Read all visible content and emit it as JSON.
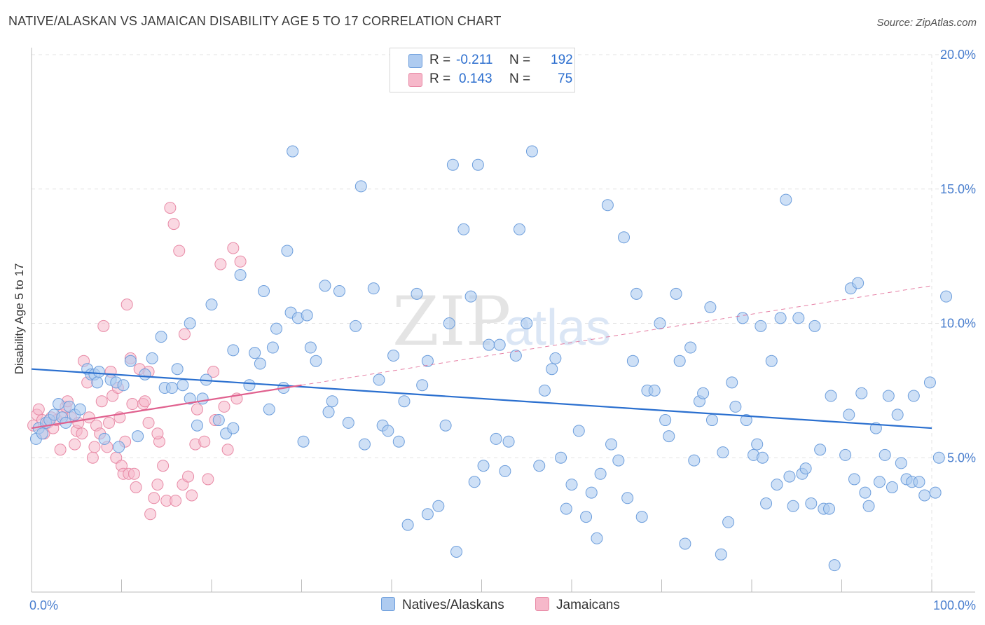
{
  "title": "NATIVE/ALASKAN VS JAMAICAN DISABILITY AGE 5 TO 17 CORRELATION CHART",
  "source": "Source: ZipAtlas.com",
  "watermark": {
    "zip": "ZIP",
    "atlas": "atlas"
  },
  "legend": {
    "rows": [
      {
        "r_label": "R =",
        "r_value": "-0.211",
        "n_label": "N =",
        "n_value": "192",
        "color": "#aecbf0"
      },
      {
        "r_label": "R =",
        "r_value": "0.143",
        "n_label": "N =",
        "n_value": "75",
        "color": "#f6b8ca"
      }
    ]
  },
  "bottom_legend": [
    {
      "label": "Natives/Alaskans",
      "color": "#aecbf0"
    },
    {
      "label": "Jamaicans",
      "color": "#f6b8ca"
    }
  ],
  "chart_data": {
    "type": "scatter",
    "title": "NATIVE/ALASKAN VS JAMAICAN DISABILITY AGE 5 TO 17 CORRELATION CHART",
    "xlabel": "",
    "ylabel": "Disability Age 5 to 17",
    "xlim": [
      0,
      100
    ],
    "ylim": [
      0,
      20
    ],
    "x_tick_labels": [
      "0.0%",
      "100.0%"
    ],
    "y_tick_labels": [
      "5.0%",
      "10.0%",
      "15.0%",
      "20.0%"
    ],
    "y_ticks": [
      5,
      10,
      15,
      20
    ],
    "grid": true,
    "colors": {
      "blue_fill": "#aecbf0",
      "blue_stroke": "#6d9edc",
      "blue_line": "#2a6fcf",
      "pink_fill": "#f6b8ca",
      "pink_stroke": "#e88aa6",
      "pink_line": "#e0608e"
    },
    "series": [
      {
        "name": "Natives/Alaskans",
        "color": "#aecbf0",
        "trend": {
          "x": [
            0,
            100
          ],
          "y": [
            8.3,
            6.1
          ]
        },
        "points": [
          [
            0.5,
            5.7
          ],
          [
            0.8,
            6.1
          ],
          [
            1.2,
            5.9
          ],
          [
            1.6,
            6.3
          ],
          [
            2.0,
            6.4
          ],
          [
            2.5,
            6.6
          ],
          [
            3.0,
            7.0
          ],
          [
            3.4,
            6.5
          ],
          [
            3.8,
            6.3
          ],
          [
            4.2,
            6.9
          ],
          [
            4.8,
            6.6
          ],
          [
            5.4,
            6.8
          ],
          [
            6.2,
            8.3
          ],
          [
            6.6,
            8.1
          ],
          [
            7.0,
            8.1
          ],
          [
            7.3,
            7.8
          ],
          [
            7.5,
            8.2
          ],
          [
            8.1,
            5.7
          ],
          [
            8.8,
            7.9
          ],
          [
            9.4,
            7.8
          ],
          [
            9.7,
            5.4
          ],
          [
            10.2,
            7.7
          ],
          [
            11.0,
            8.6
          ],
          [
            11.8,
            5.8
          ],
          [
            12.6,
            8.1
          ],
          [
            13.4,
            8.7
          ],
          [
            14.4,
            9.5
          ],
          [
            14.8,
            7.6
          ],
          [
            15.6,
            7.6
          ],
          [
            16.2,
            8.3
          ],
          [
            16.8,
            7.7
          ],
          [
            17.6,
            7.2
          ],
          [
            17.6,
            10.0
          ],
          [
            18.4,
            6.2
          ],
          [
            19.0,
            7.2
          ],
          [
            19.4,
            7.9
          ],
          [
            20.0,
            10.7
          ],
          [
            20.8,
            6.4
          ],
          [
            21.6,
            5.9
          ],
          [
            22.4,
            6.1
          ],
          [
            22.4,
            9.0
          ],
          [
            23.2,
            11.8
          ],
          [
            24.2,
            7.7
          ],
          [
            24.8,
            8.9
          ],
          [
            25.4,
            8.5
          ],
          [
            25.8,
            11.2
          ],
          [
            26.4,
            6.8
          ],
          [
            26.8,
            9.1
          ],
          [
            27.2,
            9.8
          ],
          [
            28.0,
            7.6
          ],
          [
            28.4,
            12.7
          ],
          [
            28.8,
            10.4
          ],
          [
            29.0,
            16.4
          ],
          [
            29.6,
            10.2
          ],
          [
            30.2,
            5.6
          ],
          [
            30.6,
            10.3
          ],
          [
            31.0,
            9.1
          ],
          [
            31.6,
            8.6
          ],
          [
            32.6,
            11.4
          ],
          [
            33.0,
            6.7
          ],
          [
            33.4,
            7.1
          ],
          [
            34.2,
            11.2
          ],
          [
            35.2,
            6.3
          ],
          [
            36.0,
            9.9
          ],
          [
            36.6,
            15.1
          ],
          [
            37.0,
            5.5
          ],
          [
            38.0,
            11.3
          ],
          [
            38.6,
            7.9
          ],
          [
            39.0,
            6.2
          ],
          [
            39.6,
            6.0
          ],
          [
            40.2,
            8.8
          ],
          [
            40.8,
            5.6
          ],
          [
            41.4,
            7.1
          ],
          [
            41.8,
            2.5
          ],
          [
            42.8,
            11.1
          ],
          [
            43.4,
            7.7
          ],
          [
            44.0,
            8.6
          ],
          [
            44.0,
            2.9
          ],
          [
            45.2,
            3.2
          ],
          [
            46.0,
            6.2
          ],
          [
            46.4,
            10.0
          ],
          [
            46.8,
            15.9
          ],
          [
            47.2,
            1.5
          ],
          [
            48.0,
            13.5
          ],
          [
            48.8,
            11.0
          ],
          [
            49.2,
            4.1
          ],
          [
            49.6,
            15.9
          ],
          [
            50.2,
            4.7
          ],
          [
            50.8,
            9.2
          ],
          [
            51.6,
            5.7
          ],
          [
            52.0,
            9.2
          ],
          [
            52.6,
            4.5
          ],
          [
            53.0,
            5.6
          ],
          [
            53.8,
            8.8
          ],
          [
            54.2,
            13.5
          ],
          [
            55.0,
            10.0
          ],
          [
            55.6,
            16.4
          ],
          [
            56.4,
            4.7
          ],
          [
            57.0,
            7.5
          ],
          [
            57.8,
            8.3
          ],
          [
            58.2,
            8.7
          ],
          [
            58.8,
            5.0
          ],
          [
            59.4,
            3.1
          ],
          [
            60.0,
            4.0
          ],
          [
            60.8,
            6.0
          ],
          [
            61.6,
            2.8
          ],
          [
            62.2,
            3.7
          ],
          [
            62.8,
            2.0
          ],
          [
            63.2,
            4.4
          ],
          [
            64.0,
            14.4
          ],
          [
            64.4,
            5.5
          ],
          [
            65.2,
            4.9
          ],
          [
            65.8,
            13.2
          ],
          [
            66.2,
            3.5
          ],
          [
            66.8,
            8.6
          ],
          [
            67.2,
            11.1
          ],
          [
            67.8,
            2.8
          ],
          [
            68.4,
            7.5
          ],
          [
            69.2,
            7.5
          ],
          [
            69.8,
            10.0
          ],
          [
            70.4,
            6.4
          ],
          [
            70.8,
            5.8
          ],
          [
            71.6,
            11.1
          ],
          [
            72.0,
            8.6
          ],
          [
            72.6,
            1.8
          ],
          [
            73.2,
            9.1
          ],
          [
            73.6,
            4.9
          ],
          [
            74.2,
            7.1
          ],
          [
            74.6,
            7.4
          ],
          [
            75.4,
            10.6
          ],
          [
            75.6,
            6.4
          ],
          [
            76.6,
            1.4
          ],
          [
            76.8,
            5.2
          ],
          [
            77.4,
            2.6
          ],
          [
            77.8,
            7.8
          ],
          [
            78.2,
            6.9
          ],
          [
            79.0,
            10.2
          ],
          [
            79.4,
            6.4
          ],
          [
            80.2,
            5.1
          ],
          [
            80.6,
            5.5
          ],
          [
            81.0,
            9.9
          ],
          [
            81.2,
            5.0
          ],
          [
            81.6,
            3.3
          ],
          [
            82.2,
            8.6
          ],
          [
            82.8,
            4.0
          ],
          [
            83.2,
            10.2
          ],
          [
            83.8,
            14.6
          ],
          [
            84.2,
            4.3
          ],
          [
            84.6,
            3.2
          ],
          [
            85.2,
            10.2
          ],
          [
            85.6,
            4.4
          ],
          [
            86.0,
            4.6
          ],
          [
            86.6,
            3.3
          ],
          [
            87.0,
            9.9
          ],
          [
            87.6,
            5.3
          ],
          [
            88.0,
            3.1
          ],
          [
            88.6,
            3.1
          ],
          [
            88.8,
            7.3
          ],
          [
            89.2,
            1.0
          ],
          [
            90.4,
            5.1
          ],
          [
            90.8,
            6.6
          ],
          [
            91.0,
            11.3
          ],
          [
            91.4,
            4.2
          ],
          [
            91.8,
            11.5
          ],
          [
            92.2,
            7.4
          ],
          [
            92.6,
            3.7
          ],
          [
            93.0,
            3.2
          ],
          [
            93.8,
            6.1
          ],
          [
            94.2,
            4.1
          ],
          [
            94.8,
            5.1
          ],
          [
            95.2,
            7.3
          ],
          [
            95.6,
            3.9
          ],
          [
            96.2,
            6.6
          ],
          [
            96.6,
            4.8
          ],
          [
            97.2,
            4.2
          ],
          [
            97.8,
            4.1
          ],
          [
            98.0,
            7.3
          ],
          [
            98.6,
            4.1
          ],
          [
            99.2,
            3.6
          ],
          [
            99.8,
            7.8
          ],
          [
            100.4,
            3.7
          ],
          [
            100.8,
            5.0
          ],
          [
            101.6,
            11.0
          ]
        ]
      },
      {
        "name": "Jamaicans",
        "color": "#f6b8ca",
        "trend": {
          "x": [
            0,
            30
          ],
          "y": [
            6.1,
            7.7
          ]
        },
        "trend_extension": {
          "x": [
            30,
            100
          ],
          "y": [
            7.7,
            11.4
          ]
        },
        "points": [
          [
            0.2,
            6.2
          ],
          [
            0.6,
            6.6
          ],
          [
            0.8,
            6.8
          ],
          [
            1.2,
            6.4
          ],
          [
            1.4,
            5.9
          ],
          [
            1.8,
            6.3
          ],
          [
            2.2,
            6.5
          ],
          [
            2.4,
            6.1
          ],
          [
            2.8,
            6.4
          ],
          [
            3.2,
            5.3
          ],
          [
            3.4,
            6.6
          ],
          [
            3.8,
            6.9
          ],
          [
            4.0,
            7.1
          ],
          [
            4.4,
            6.5
          ],
          [
            4.8,
            5.5
          ],
          [
            5.0,
            6.0
          ],
          [
            5.2,
            6.3
          ],
          [
            5.6,
            5.9
          ],
          [
            5.8,
            8.6
          ],
          [
            6.2,
            7.8
          ],
          [
            6.4,
            6.5
          ],
          [
            6.8,
            5.0
          ],
          [
            7.0,
            5.4
          ],
          [
            7.2,
            6.2
          ],
          [
            7.6,
            5.9
          ],
          [
            7.8,
            7.1
          ],
          [
            8.0,
            9.9
          ],
          [
            8.4,
            5.4
          ],
          [
            8.6,
            6.3
          ],
          [
            8.8,
            8.2
          ],
          [
            9.0,
            7.3
          ],
          [
            9.4,
            5.0
          ],
          [
            9.8,
            6.5
          ],
          [
            10.0,
            4.7
          ],
          [
            10.2,
            4.4
          ],
          [
            10.4,
            5.6
          ],
          [
            10.8,
            4.4
          ],
          [
            11.0,
            8.7
          ],
          [
            11.4,
            4.4
          ],
          [
            11.6,
            3.9
          ],
          [
            12.0,
            8.3
          ],
          [
            12.4,
            7.0
          ],
          [
            12.6,
            7.1
          ],
          [
            13.0,
            6.3
          ],
          [
            13.2,
            2.9
          ],
          [
            13.6,
            3.5
          ],
          [
            14.0,
            4.0
          ],
          [
            14.2,
            5.6
          ],
          [
            14.6,
            4.7
          ],
          [
            15.0,
            3.4
          ],
          [
            15.4,
            14.3
          ],
          [
            15.8,
            13.7
          ],
          [
            16.0,
            3.4
          ],
          [
            16.4,
            12.7
          ],
          [
            16.8,
            4.0
          ],
          [
            17.0,
            9.6
          ],
          [
            17.4,
            4.3
          ],
          [
            17.8,
            3.6
          ],
          [
            18.2,
            5.5
          ],
          [
            18.4,
            6.8
          ],
          [
            19.2,
            5.6
          ],
          [
            19.6,
            4.2
          ],
          [
            20.2,
            8.2
          ],
          [
            20.4,
            6.4
          ],
          [
            21.0,
            12.2
          ],
          [
            21.4,
            6.9
          ],
          [
            21.8,
            5.3
          ],
          [
            22.4,
            12.8
          ],
          [
            22.8,
            7.2
          ],
          [
            23.2,
            12.3
          ],
          [
            9.6,
            7.6
          ],
          [
            10.6,
            10.7
          ],
          [
            13.0,
            8.2
          ],
          [
            11.2,
            7.0
          ],
          [
            14.0,
            5.9
          ]
        ]
      }
    ]
  }
}
